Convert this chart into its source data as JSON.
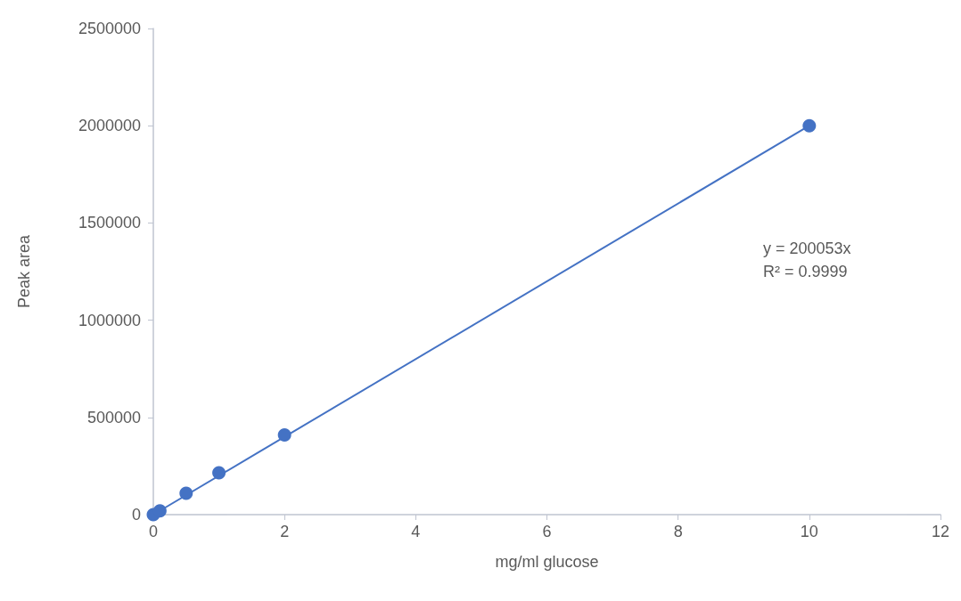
{
  "chart_data": {
    "type": "scatter",
    "xlabel": "mg/ml glucose",
    "ylabel": "Peak area",
    "xlim": [
      0,
      12
    ],
    "xticks": [
      0,
      2,
      4,
      6,
      8,
      10,
      12
    ],
    "ylim": [
      0,
      2500000
    ],
    "yticks": [
      0,
      500000,
      1000000,
      1500000,
      2000000,
      2500000
    ],
    "grid": false,
    "series": [
      {
        "color": "#4472c4",
        "marker": "circle",
        "x": [
          0,
          0.1,
          0.5,
          1,
          2,
          10
        ],
        "values": [
          0,
          20000,
          110000,
          215000,
          410000,
          2000000
        ]
      },
      {
        "type": "line",
        "color": "#4472c4",
        "line_style": "solid",
        "marker": "none",
        "x": [
          0,
          10
        ],
        "values": [
          0,
          2000000
        ]
      }
    ],
    "annotations": [
      "y = 200053x",
      "R² = 0.9999"
    ]
  }
}
